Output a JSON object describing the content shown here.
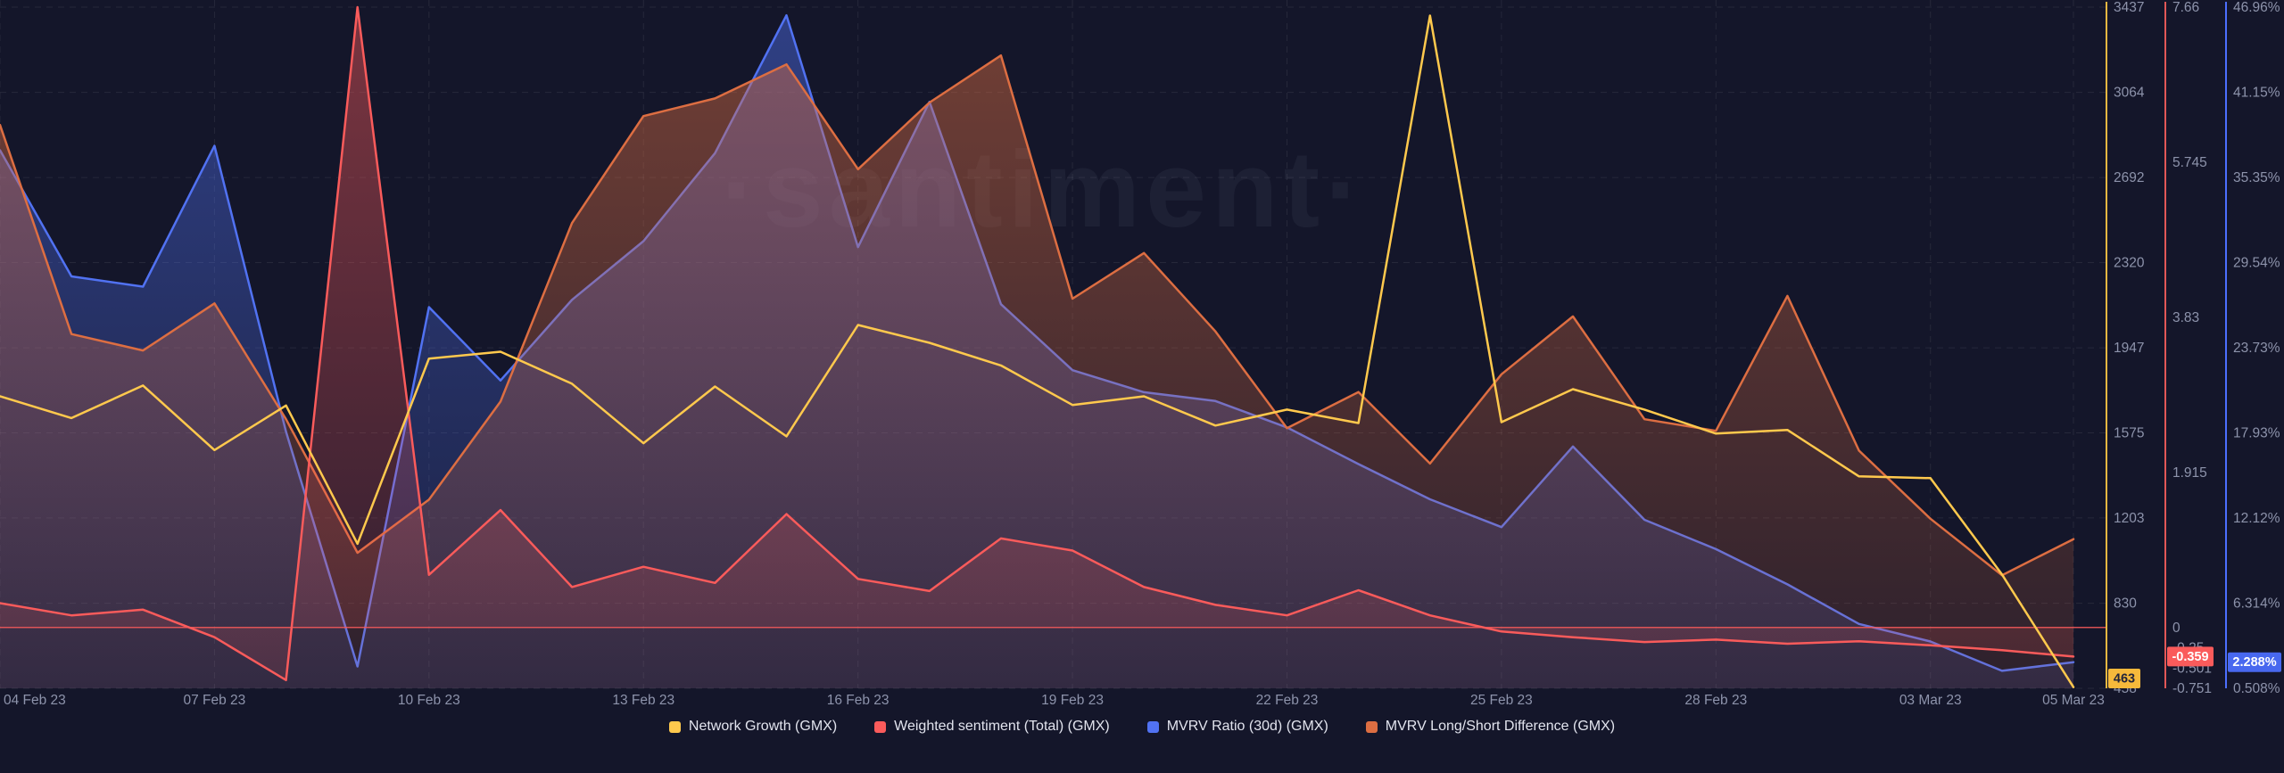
{
  "watermark": "·santiment·",
  "legend": [
    {
      "label": "Network Growth (GMX)",
      "color": "#ffc94d"
    },
    {
      "label": "Weighted sentiment (Total) (GMX)",
      "color": "#fa5b5b"
    },
    {
      "label": "MVRV Ratio (30d) (GMX)",
      "color": "#5172f2"
    },
    {
      "label": "MVRV Long/Short Difference (GMX)",
      "color": "#dd6e42"
    }
  ],
  "chart_data": {
    "type": "line",
    "title": "",
    "grid": true,
    "legend_position": "bottom",
    "x_categories": [
      "04 Feb 23",
      "05 Feb 23",
      "06 Feb 23",
      "07 Feb 23",
      "08 Feb 23",
      "09 Feb 23",
      "10 Feb 23",
      "11 Feb 23",
      "12 Feb 23",
      "13 Feb 23",
      "14 Feb 23",
      "15 Feb 23",
      "16 Feb 23",
      "17 Feb 23",
      "18 Feb 23",
      "19 Feb 23",
      "20 Feb 23",
      "21 Feb 23",
      "22 Feb 23",
      "23 Feb 23",
      "24 Feb 23",
      "25 Feb 23",
      "26 Feb 23",
      "27 Feb 23",
      "28 Feb 23",
      "01 Mar 23",
      "02 Mar 23",
      "03 Mar 23",
      "04 Mar 23",
      "05 Mar 23"
    ],
    "x_tick_labels": [
      {
        "label": "04 Feb 23",
        "day": 0
      },
      {
        "label": "07 Feb 23",
        "day": 3
      },
      {
        "label": "10 Feb 23",
        "day": 6
      },
      {
        "label": "13 Feb 23",
        "day": 9
      },
      {
        "label": "16 Feb 23",
        "day": 12
      },
      {
        "label": "19 Feb 23",
        "day": 15
      },
      {
        "label": "22 Feb 23",
        "day": 18
      },
      {
        "label": "25 Feb 23",
        "day": 21
      },
      {
        "label": "28 Feb 23",
        "day": 24
      },
      {
        "label": "03 Mar 23",
        "day": 27
      },
      {
        "label": "05 Mar 23",
        "day": 29
      }
    ],
    "series": [
      {
        "name": "MVRV Ratio (30d) (GMX)",
        "axis": "mvrv_ratio",
        "color": "#5172f2",
        "fill": "to-bottom",
        "values": [
          37.2,
          28.6,
          27.9,
          37.5,
          18.0,
          2.0,
          26.5,
          21.5,
          27.0,
          31.0,
          37.0,
          46.4,
          30.6,
          40.5,
          26.7,
          22.2,
          20.7,
          20.1,
          18.3,
          15.8,
          13.4,
          11.5,
          17.0,
          12.0,
          10.0,
          7.6,
          4.9,
          3.7,
          1.7,
          2.288
        ]
      },
      {
        "name": "MVRV Long/Short Difference (GMX)",
        "axis": "hidden_normalized",
        "color": "#dd6e42",
        "fill": "to-bottom",
        "values": [
          0.827,
          0.52,
          0.496,
          0.565,
          0.395,
          0.199,
          0.277,
          0.421,
          0.683,
          0.84,
          0.866,
          0.916,
          0.762,
          0.86,
          0.929,
          0.572,
          0.639,
          0.524,
          0.382,
          0.435,
          0.33,
          0.461,
          0.546,
          0.395,
          0.378,
          0.576,
          0.349,
          0.249,
          0.166,
          0.219
        ]
      },
      {
        "name": "Weighted sentiment (Total) (GMX)",
        "axis": "weighted_sentiment",
        "color": "#fa5b5b",
        "fill": "to-zero",
        "values": [
          0.3,
          0.15,
          0.22,
          -0.12,
          -0.65,
          7.66,
          0.65,
          1.45,
          0.5,
          0.75,
          0.55,
          1.4,
          0.6,
          0.45,
          1.1,
          0.95,
          0.5,
          0.28,
          0.15,
          0.46,
          0.15,
          -0.05,
          -0.12,
          -0.18,
          -0.15,
          -0.2,
          -0.17,
          -0.22,
          -0.28,
          -0.359
        ]
      },
      {
        "name": "Network Growth (GMX)",
        "axis": "network_growth",
        "color": "#ffc94d",
        "fill": "none",
        "values": [
          1735,
          1640,
          1782,
          1500,
          1695,
          1090,
          1900,
          1930,
          1790,
          1530,
          1778,
          1560,
          2047,
          1969,
          1870,
          1697,
          1735,
          1607,
          1677,
          1618,
          3400,
          1622,
          1766,
          1677,
          1572,
          1588,
          1385,
          1377,
          956,
          463
        ]
      }
    ],
    "y_axes": [
      {
        "id": "network_growth",
        "ylim": [
          458,
          3437
        ],
        "line_color": "#e9b841",
        "ticks": [
          {
            "label": "3437",
            "value": 3437
          },
          {
            "label": "3064",
            "value": 3064
          },
          {
            "label": "2692",
            "value": 2692
          },
          {
            "label": "2320",
            "value": 2320
          },
          {
            "label": "1947",
            "value": 1947
          },
          {
            "label": "1575",
            "value": 1575
          },
          {
            "label": "1203",
            "value": 1203
          },
          {
            "label": "830",
            "value": 830
          },
          {
            "label": "458",
            "value": 458
          }
        ],
        "badge": {
          "text": "463",
          "value": 463,
          "bg": "#f6b93b",
          "fg": "#22243a"
        }
      },
      {
        "id": "weighted_sentiment",
        "ylim": [
          -0.751,
          7.66
        ],
        "line_color": "#e25757",
        "ticks": [
          {
            "label": "7.66",
            "value": 7.66
          },
          {
            "label": "5.745",
            "value": 5.745
          },
          {
            "label": "3.83",
            "value": 3.83
          },
          {
            "label": "1.915",
            "value": 1.915
          },
          {
            "label": "0",
            "value": 0
          },
          {
            "label": "-0.25",
            "value": -0.25
          },
          {
            "label": "-0.501",
            "value": -0.501
          },
          {
            "label": "-0.751",
            "value": -0.751
          }
        ],
        "badge": {
          "text": "-0.359",
          "value": -0.359,
          "bg": "#fa5b5b",
          "fg": "#ffffff"
        }
      },
      {
        "id": "mvrv_ratio",
        "ylim": [
          0.508,
          46.96
        ],
        "line_color": "#4c6fff",
        "ticks": [
          {
            "label": "46.96%",
            "value": 46.96
          },
          {
            "label": "41.15%",
            "value": 41.15
          },
          {
            "label": "35.35%",
            "value": 35.35
          },
          {
            "label": "29.54%",
            "value": 29.54
          },
          {
            "label": "23.73%",
            "value": 23.73
          },
          {
            "label": "17.93%",
            "value": 17.93
          },
          {
            "label": "12.12%",
            "value": 12.12
          },
          {
            "label": "6.314%",
            "value": 6.314
          },
          {
            "label": "0.508%",
            "value": 0.508
          }
        ],
        "badge": {
          "text": "2.288%",
          "value": 2.288,
          "bg": "#4868ef",
          "fg": "#ffffff"
        }
      },
      {
        "id": "hidden_normalized",
        "ylim": [
          0,
          1
        ],
        "hidden": true
      }
    ]
  },
  "colors": {
    "background": "#14162a",
    "gridline": "rgba(255,255,255,0.08)",
    "tick_text": "#8d93ab",
    "zero_line": "rgba(250,91,91,0.85)"
  }
}
